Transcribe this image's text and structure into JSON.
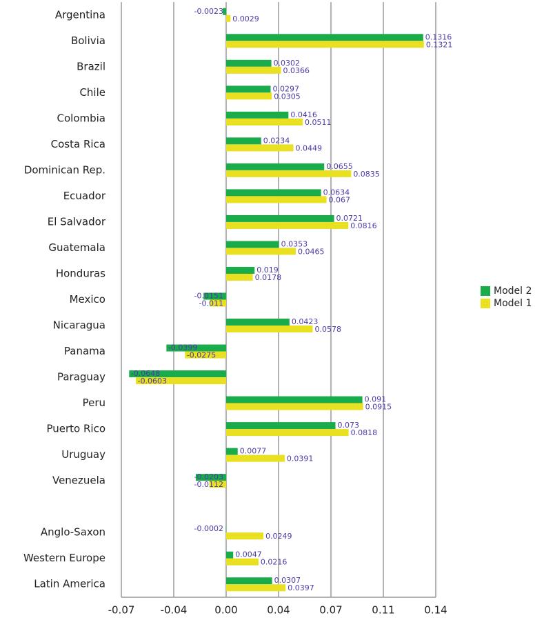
{
  "chart_data": {
    "type": "hbar",
    "categories": [
      "Argentina",
      "Bolivia",
      "Brazil",
      "Chile",
      "Colombia",
      "Costa Rica",
      "Dominican Rep.",
      "Ecuador",
      "El Salvador",
      "Guatemala",
      "Honduras",
      "Mexico",
      "Nicaragua",
      "Panama",
      "Paraguay",
      "Peru",
      "Puerto Rico",
      "Uruguay",
      "Venezuela",
      null,
      "Anglo-Saxon",
      "Western Europe",
      "Latin America"
    ],
    "series": [
      {
        "name": "Model 2",
        "color": "#1aab4a",
        "values": [
          -0.0023,
          0.1316,
          0.0302,
          0.0297,
          0.0416,
          0.0234,
          0.0655,
          0.0634,
          0.0721,
          0.0353,
          0.019,
          -0.0151,
          0.0423,
          -0.0399,
          -0.0648,
          0.091,
          0.073,
          0.0077,
          -0.0203,
          null,
          -0.0002,
          0.0047,
          0.0307
        ]
      },
      {
        "name": "Model 1",
        "color": "#e8e020",
        "values": [
          0.0029,
          0.1321,
          0.0366,
          0.0305,
          0.0511,
          0.0449,
          0.0835,
          0.067,
          0.0816,
          0.0465,
          0.0178,
          -0.011,
          0.0578,
          -0.0275,
          -0.0603,
          0.0915,
          0.0818,
          0.0391,
          -0.0112,
          null,
          0.0249,
          0.0216,
          0.0397
        ]
      }
    ],
    "xlim": [
      -0.07,
      0.14
    ],
    "xticks": [
      -0.07,
      {
        "value": -0.035,
        "label": "-0.04"
      },
      {
        "value": 0,
        "label": "0.00"
      },
      {
        "value": 0.035,
        "label": "0.04"
      },
      0.07,
      {
        "value": 0.105,
        "label": "0.11"
      },
      0.14
    ],
    "grid": true,
    "legend": "right"
  }
}
